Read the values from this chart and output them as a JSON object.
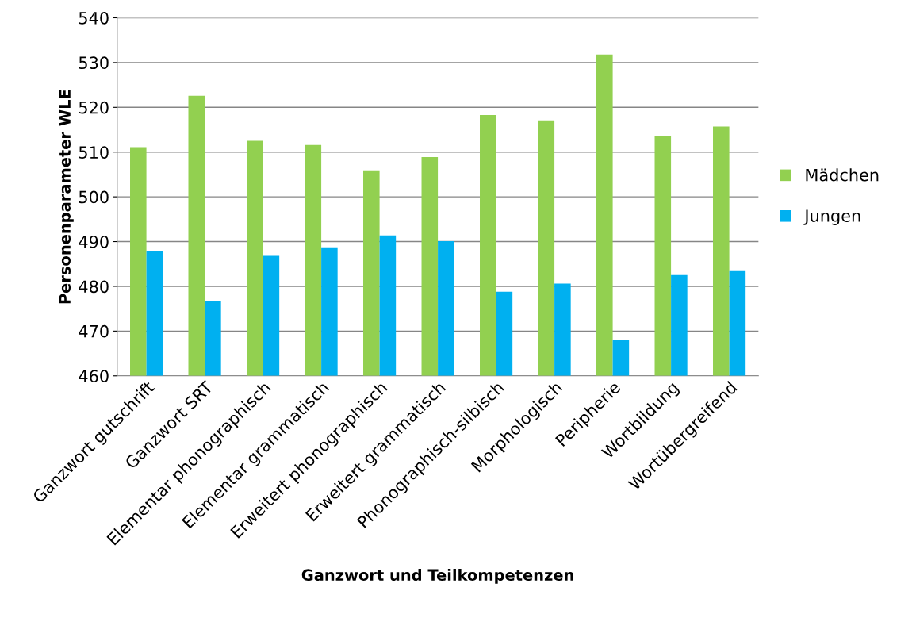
{
  "chart_data": {
    "type": "bar",
    "xlabel": "Ganzwort und Teilkompetenzen",
    "ylabel": "Personenparameter WLE",
    "categories": [
      "Ganzwort gutschrift",
      "Ganzwort SRT",
      "Elementar phonographisch",
      "Elementar grammatisch",
      "Erweitert phonographisch",
      "Erweitert grammatisch",
      "Phonographisch-silbisch",
      "Morphologisch",
      "Peripherie",
      "Wortbildung",
      "Wortübergreifend"
    ],
    "series": [
      {
        "name": "Mädchen",
        "color": "#92d050",
        "values": [
          511.1,
          522.6,
          512.5,
          511.6,
          505.9,
          508.9,
          518.3,
          517.1,
          531.8,
          513.5,
          515.7
        ]
      },
      {
        "name": "Jungen",
        "color": "#00b0f0",
        "values": [
          487.8,
          476.7,
          486.8,
          488.7,
          491.4,
          490.1,
          478.8,
          480.6,
          468.0,
          482.5,
          483.6
        ]
      }
    ],
    "ylim": [
      460,
      540
    ],
    "yticks": [
      460,
      470,
      480,
      490,
      500,
      510,
      520,
      530,
      540
    ],
    "grid": "y",
    "legend": "right"
  }
}
